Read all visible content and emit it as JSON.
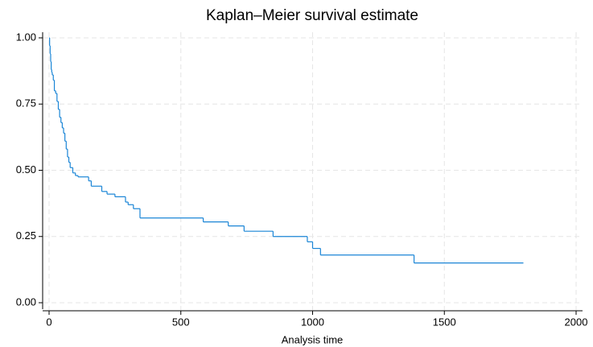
{
  "chart_data": {
    "type": "step",
    "title": "Kaplan–Meier survival estimate",
    "x_label": "Analysis time",
    "x": [
      0,
      2,
      4,
      6,
      8,
      10,
      12,
      16,
      20,
      25,
      30,
      35,
      40,
      45,
      50,
      55,
      60,
      65,
      70,
      75,
      80,
      90,
      100,
      110,
      150,
      160,
      200,
      220,
      250,
      290,
      300,
      320,
      345,
      585,
      680,
      740,
      850,
      980,
      1000,
      1030,
      1385,
      1800
    ],
    "y": [
      1.0,
      0.97,
      0.94,
      0.91,
      0.88,
      0.87,
      0.86,
      0.84,
      0.8,
      0.79,
      0.76,
      0.73,
      0.7,
      0.68,
      0.66,
      0.64,
      0.61,
      0.58,
      0.55,
      0.53,
      0.51,
      0.49,
      0.48,
      0.475,
      0.46,
      0.44,
      0.42,
      0.41,
      0.4,
      0.38,
      0.37,
      0.355,
      0.32,
      0.305,
      0.29,
      0.27,
      0.25,
      0.23,
      0.205,
      0.18,
      0.15,
      0.15
    ],
    "color": "#1a85d6",
    "xlim": [
      0,
      2000
    ],
    "xticks": [
      0,
      500,
      1000,
      1500,
      2000
    ],
    "ylim": [
      0,
      1
    ],
    "yticks": [
      {
        "value": 0,
        "label": "0.00"
      },
      {
        "value": 0.25,
        "label": "0.25"
      },
      {
        "value": 0.5,
        "label": "0.50"
      },
      {
        "value": 0.75,
        "label": "0.75"
      },
      {
        "value": 1,
        "label": "1.00"
      }
    ],
    "grid": true
  }
}
